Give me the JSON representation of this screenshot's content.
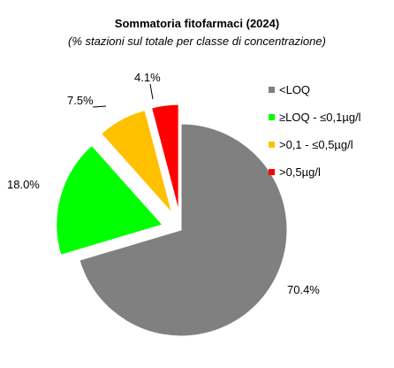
{
  "chart_data": {
    "type": "pie",
    "title": "Sommatoria  fitofarmaci (2024)",
    "subtitle": "(% stazioni sul totale per classe di concentrazione)",
    "categories": [
      "<LOQ",
      "≥LOQ - ≤0,1µg/l",
      ">0,1 - ≤0,5µg/l",
      ">0,5µg/l"
    ],
    "values": [
      70.4,
      18.0,
      7.5,
      4.1
    ],
    "labels": [
      "70.4%",
      "18.0%",
      "7.5%",
      "4.1%"
    ],
    "colors": [
      "#808080",
      "#00ff00",
      "#ffc000",
      "#ff0000"
    ],
    "exploded": [
      false,
      true,
      true,
      true
    ],
    "legend_position": "right"
  }
}
